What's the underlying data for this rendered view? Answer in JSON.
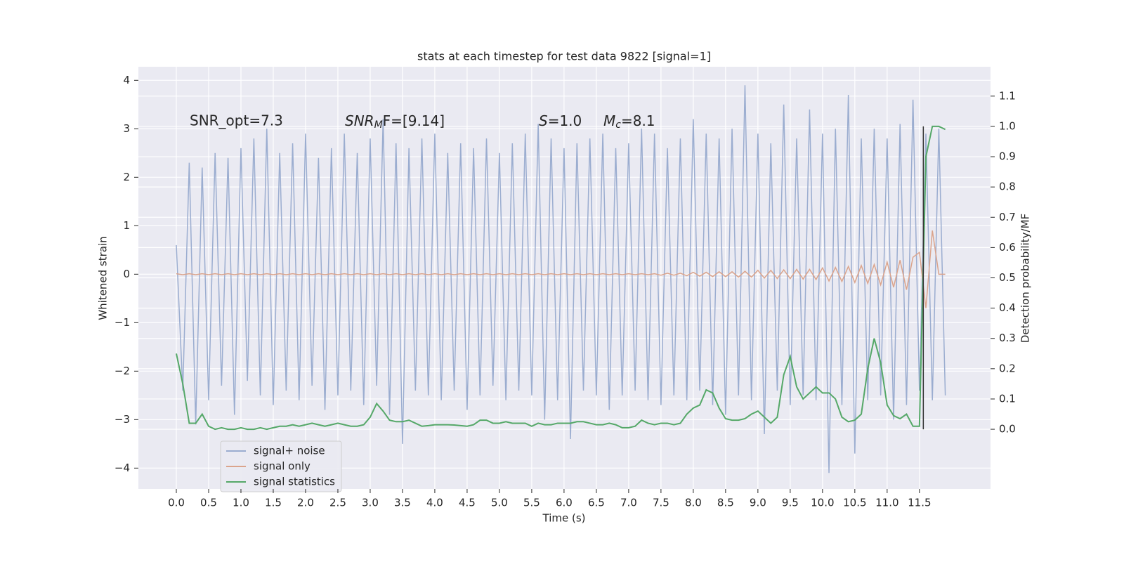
{
  "chart_data": {
    "type": "line",
    "title": "stats at each timestep for test data 9822 [signal=1]",
    "xlabel": "Time (s)",
    "ylabel": "Whitened strain",
    "y2label": "Detection probability/MF",
    "grid": true,
    "legend": "lower left",
    "xlim": [
      -0.587,
      12.6
    ],
    "ylim": [
      -4.43,
      4.28
    ],
    "y2lim": [
      -0.197,
      1.197
    ],
    "xticks": [
      {
        "value": 0,
        "label": "0.0"
      },
      0.5,
      {
        "value": 1,
        "label": "1.0"
      },
      1.5,
      {
        "value": 2,
        "label": "2.0"
      },
      2.5,
      {
        "value": 3,
        "label": "3.0"
      },
      3.5,
      {
        "value": 4,
        "label": "4.0"
      },
      4.5,
      {
        "value": 5,
        "label": "5.0"
      },
      5.5,
      {
        "value": 6,
        "label": "6.0"
      },
      6.5,
      {
        "value": 7,
        "label": "7.0"
      },
      7.5,
      {
        "value": 8,
        "label": "8.0"
      },
      8.5,
      {
        "value": 9,
        "label": "9.0"
      },
      9.5,
      {
        "value": 10,
        "label": "10.0"
      },
      10.5,
      {
        "value": 11,
        "label": "11.0"
      },
      11.5
    ],
    "yticks": [
      {
        "value": -4,
        "label": "−4"
      },
      {
        "value": -3,
        "label": "−3"
      },
      {
        "value": -2,
        "label": "−2"
      },
      {
        "value": -1,
        "label": "−1"
      },
      0,
      1,
      2,
      3,
      4
    ],
    "y2ticks": [
      {
        "value": 0,
        "label": "0.0"
      },
      0.1,
      0.2,
      0.3,
      0.4,
      0.5,
      0.6,
      0.7,
      0.8,
      0.9,
      {
        "value": 1,
        "label": "1.0"
      },
      1.1
    ],
    "annotations": [
      {
        "text": "SNR_opt=7.3"
      },
      {
        "symbol": "SNR",
        "sub": "M",
        "rest": "F=[9.14]"
      },
      {
        "symbol": "S",
        "rest": "=1.0"
      },
      {
        "symbol": "M",
        "sub": "c",
        "rest": "=8.1"
      }
    ],
    "vline": {
      "x": 11.56,
      "ymin": -3.2,
      "ymax": 3.05,
      "color": "#333333"
    },
    "x": [
      0,
      0.1,
      0.2,
      0.3,
      0.4,
      0.5,
      0.6,
      0.7,
      0.8,
      0.9,
      1,
      1.1,
      1.2,
      1.3,
      1.4,
      1.5,
      1.6,
      1.7,
      1.8,
      1.9,
      2,
      2.1,
      2.2,
      2.3,
      2.4,
      2.5,
      2.6,
      2.7,
      2.8,
      2.9,
      3,
      3.1,
      3.2,
      3.3,
      3.4,
      3.5,
      3.6,
      3.7,
      3.8,
      3.9,
      4,
      4.1,
      4.2,
      4.3,
      4.4,
      4.5,
      4.6,
      4.7,
      4.8,
      4.9,
      5,
      5.1,
      5.2,
      5.3,
      5.4,
      5.5,
      5.6,
      5.7,
      5.8,
      5.9,
      6,
      6.1,
      6.2,
      6.3,
      6.4,
      6.5,
      6.6,
      6.7,
      6.8,
      6.9,
      7,
      7.1,
      7.2,
      7.3,
      7.4,
      7.5,
      7.6,
      7.7,
      7.8,
      7.9,
      8,
      8.1,
      8.2,
      8.3,
      8.4,
      8.5,
      8.6,
      8.7,
      8.8,
      8.9,
      9,
      9.1,
      9.2,
      9.3,
      9.4,
      9.5,
      9.6,
      9.7,
      9.8,
      9.9,
      10,
      10.1,
      10.2,
      10.3,
      10.4,
      10.5,
      10.6,
      10.7,
      10.8,
      10.9,
      11,
      11.1,
      11.2,
      11.3,
      11.4,
      11.5,
      11.6,
      11.7,
      11.8,
      11.9
    ],
    "series": [
      {
        "name": "signal+ noise",
        "color": "#9badd0",
        "values": [
          0.6,
          -2.4,
          2.3,
          -3.1,
          2.2,
          -2.6,
          2.5,
          -2.3,
          2.4,
          -2.9,
          2.6,
          -2.2,
          2.8,
          -2.5,
          3.0,
          -2.7,
          2.5,
          -2.4,
          2.7,
          -2.6,
          2.9,
          -2.3,
          2.4,
          -2.8,
          2.6,
          -2.5,
          2.9,
          -2.4,
          2.5,
          -2.7,
          2.8,
          -2.3,
          3.2,
          -2.9,
          2.7,
          -3.5,
          2.6,
          -2.4,
          2.8,
          -2.5,
          2.9,
          -2.6,
          2.5,
          -2.4,
          2.7,
          -2.8,
          2.6,
          -2.5,
          2.8,
          -2.3,
          2.5,
          -2.6,
          2.7,
          -2.4,
          2.9,
          -2.5,
          3.1,
          -3.0,
          2.8,
          -2.6,
          2.6,
          -3.4,
          2.7,
          -2.4,
          2.8,
          -2.5,
          2.9,
          -2.8,
          2.6,
          -2.5,
          2.7,
          -2.4,
          3.0,
          -2.6,
          2.9,
          -2.7,
          2.6,
          -2.5,
          2.8,
          -2.6,
          3.2,
          -2.4,
          2.9,
          -2.7,
          2.8,
          -2.9,
          3.0,
          -2.5,
          3.9,
          -2.6,
          2.9,
          -3.3,
          2.7,
          -2.4,
          3.5,
          -2.7,
          2.8,
          -2.5,
          3.4,
          -2.6,
          2.9,
          -4.1,
          3.0,
          -2.7,
          3.7,
          -3.7,
          2.8,
          -2.6,
          3.0,
          -2.5,
          2.8,
          -3.0,
          3.1,
          -2.7,
          3.6,
          -2.4,
          2.9,
          -2.6,
          3.0,
          -2.5
        ]
      },
      {
        "name": "signal only",
        "color": "#dba48c",
        "values": [
          0.01,
          -0.01,
          0.01,
          -0.01,
          0.01,
          -0.01,
          0.01,
          -0.01,
          0.01,
          -0.01,
          0.01,
          -0.01,
          0.01,
          -0.01,
          0.01,
          -0.01,
          0.01,
          -0.01,
          0.01,
          -0.01,
          0.01,
          -0.01,
          0.01,
          -0.01,
          0.01,
          -0.01,
          0.01,
          -0.01,
          0.01,
          -0.01,
          0.01,
          -0.01,
          0.01,
          -0.01,
          0.01,
          -0.01,
          0.01,
          -0.01,
          0.01,
          -0.01,
          0.01,
          -0.01,
          0.01,
          -0.01,
          0.01,
          -0.01,
          0.01,
          -0.01,
          0.01,
          -0.01,
          0.01,
          -0.01,
          0.01,
          -0.01,
          0.01,
          -0.01,
          0.01,
          -0.01,
          0.01,
          -0.01,
          0.01,
          -0.01,
          0.01,
          -0.01,
          0.01,
          -0.01,
          0.01,
          -0.01,
          0.01,
          -0.01,
          0.01,
          -0.01,
          0.01,
          -0.01,
          0.01,
          -0.02,
          0.02,
          -0.02,
          0.02,
          -0.03,
          0.04,
          -0.04,
          0.04,
          -0.05,
          0.05,
          -0.05,
          0.05,
          -0.06,
          0.06,
          -0.06,
          0.08,
          -0.08,
          0.08,
          -0.09,
          0.09,
          -0.09,
          0.1,
          -0.1,
          0.1,
          -0.11,
          0.13,
          -0.14,
          0.14,
          -0.15,
          0.16,
          -0.17,
          0.18,
          -0.19,
          0.2,
          -0.22,
          0.25,
          -0.27,
          0.29,
          -0.32,
          0.35,
          0.45,
          -0.7,
          0.9,
          0,
          0
        ]
      },
      {
        "name": "signal statistics",
        "color": "#55a868",
        "axis": "y2",
        "values": [
          0.25,
          0.15,
          0.02,
          0.02,
          0.05,
          0.01,
          0.0,
          0.005,
          0.0,
          0.0,
          0.005,
          0.0,
          0.0,
          0.005,
          0.0,
          0.005,
          0.01,
          0.01,
          0.015,
          0.01,
          0.015,
          0.02,
          0.015,
          0.01,
          0.015,
          0.02,
          0.015,
          0.01,
          0.01,
          0.015,
          0.04,
          0.085,
          0.06,
          0.03,
          0.025,
          0.025,
          0.03,
          0.02,
          0.01,
          0.012,
          0.015,
          0.015,
          0.015,
          0.014,
          0.012,
          0.01,
          0.015,
          0.03,
          0.03,
          0.02,
          0.02,
          0.025,
          0.02,
          0.02,
          0.02,
          0.01,
          0.02,
          0.015,
          0.015,
          0.02,
          0.02,
          0.02,
          0.025,
          0.025,
          0.02,
          0.015,
          0.015,
          0.02,
          0.015,
          0.005,
          0.005,
          0.01,
          0.03,
          0.02,
          0.015,
          0.02,
          0.02,
          0.015,
          0.02,
          0.05,
          0.07,
          0.08,
          0.13,
          0.12,
          0.07,
          0.035,
          0.03,
          0.03,
          0.035,
          0.05,
          0.06,
          0.04,
          0.02,
          0.04,
          0.18,
          0.24,
          0.14,
          0.1,
          0.12,
          0.14,
          0.12,
          0.12,
          0.1,
          0.04,
          0.025,
          0.03,
          0.05,
          0.2,
          0.3,
          0.22,
          0.08,
          0.045,
          0.035,
          0.05,
          0.01,
          0.01,
          0.9,
          1.0,
          1.0,
          0.99
        ]
      }
    ]
  }
}
